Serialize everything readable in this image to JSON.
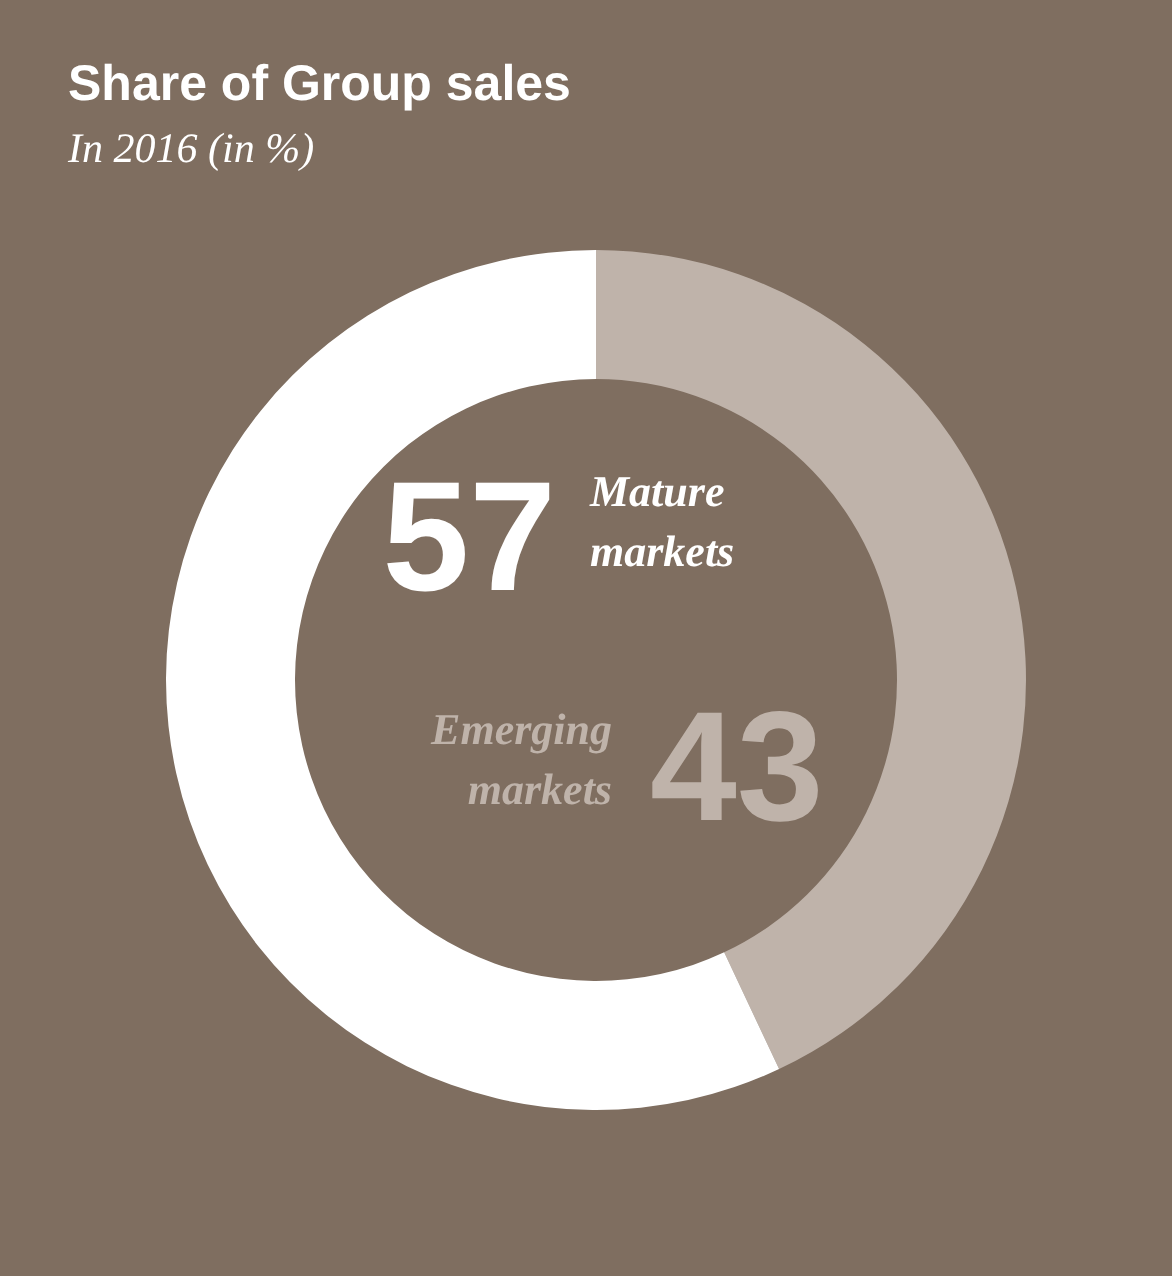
{
  "chart_data": {
    "type": "donut",
    "title": "Share of Group sales",
    "subtitle": "In 2016 (in %)",
    "categories": [
      "Emerging markets",
      "Mature markets"
    ],
    "values": [
      43,
      57
    ],
    "colors": [
      "#bfb3aa",
      "#ffffff"
    ],
    "data_labels": true,
    "legend": false
  }
}
